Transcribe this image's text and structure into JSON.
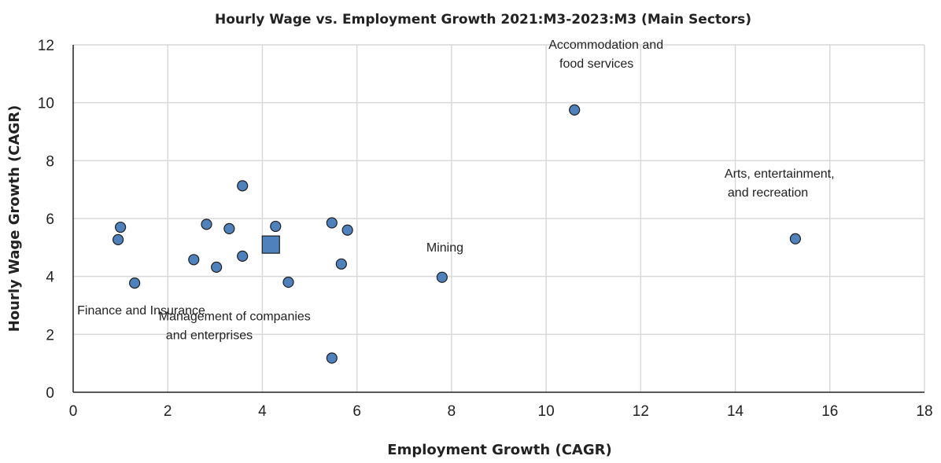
{
  "chart_data": {
    "type": "scatter",
    "title": "Hourly Wage vs. Employment Growth 2021:M3-2023:M3 (Main Sectors)",
    "xlabel": "Employment Growth (CAGR)",
    "ylabel": "Hourly Wage Growth (CAGR)",
    "xlim": [
      0,
      18
    ],
    "ylim": [
      0,
      12
    ],
    "xticks": [
      "0",
      "2",
      "4",
      "6",
      "8",
      "10",
      "12",
      "14",
      "16",
      "18"
    ],
    "yticks": [
      "0",
      "2",
      "4",
      "6",
      "8",
      "10",
      "12"
    ],
    "grid": true,
    "marker_color": "#4f81bd",
    "points": [
      {
        "x": 1.0,
        "y": 5.7
      },
      {
        "x": 0.95,
        "y": 5.27
      },
      {
        "x": 1.3,
        "y": 3.77
      },
      {
        "x": 2.55,
        "y": 4.58
      },
      {
        "x": 2.82,
        "y": 5.8
      },
      {
        "x": 3.03,
        "y": 4.32
      },
      {
        "x": 3.3,
        "y": 5.65
      },
      {
        "x": 3.58,
        "y": 7.13
      },
      {
        "x": 3.58,
        "y": 4.7
      },
      {
        "x": 4.28,
        "y": 5.73
      },
      {
        "x": 4.55,
        "y": 3.8
      },
      {
        "x": 5.47,
        "y": 5.85
      },
      {
        "x": 5.67,
        "y": 4.43
      },
      {
        "x": 5.8,
        "y": 5.6
      },
      {
        "x": 5.47,
        "y": 1.18
      },
      {
        "x": 7.8,
        "y": 3.97
      },
      {
        "x": 10.6,
        "y": 9.75
      },
      {
        "x": 15.27,
        "y": 5.3
      }
    ],
    "highlight_point": {
      "x": 4.18,
      "y": 5.1,
      "marker": "square"
    },
    "annotations": [
      {
        "lines": [
          "Accommodation and",
          "food services"
        ],
        "x": 10.6,
        "y": 9.75
      },
      {
        "lines": [
          "Arts, entertainment,",
          "and recreation"
        ],
        "x": 15.27,
        "y": 5.3
      },
      {
        "lines": [
          "Mining"
        ],
        "x": 7.8,
        "y": 3.97
      },
      {
        "lines": [
          "Finance and Insurance"
        ],
        "x": 1.3,
        "y": 3.77
      },
      {
        "lines": [
          "Management of companies",
          "and enterprises"
        ],
        "x": 5.47,
        "y": 1.18
      }
    ]
  }
}
